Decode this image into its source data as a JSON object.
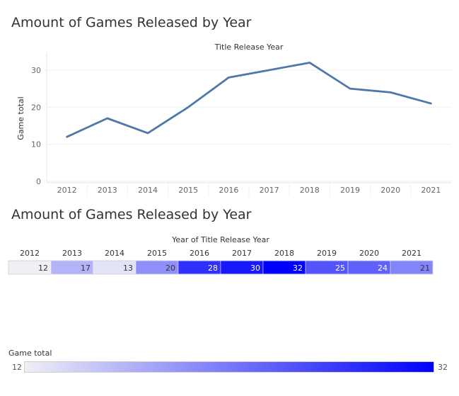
{
  "chart_data": [
    {
      "type": "line",
      "title": "Amount of Games Released by Year",
      "xlabel": "Title Release Year",
      "ylabel": "Game total",
      "categories": [
        "2012",
        "2013",
        "2014",
        "2015",
        "2016",
        "2017",
        "2018",
        "2019",
        "2020",
        "2021"
      ],
      "values": [
        12,
        17,
        13,
        20,
        28,
        30,
        32,
        25,
        24,
        21
      ],
      "yticks": [
        0,
        10,
        20,
        30
      ],
      "ylim": [
        0,
        34
      ],
      "grid": true,
      "line_color": "#4e79a7"
    },
    {
      "type": "heatmap",
      "title": "Amount of Games Released by Year",
      "xlabel": "Year of Title Release Year",
      "categories": [
        "2012",
        "2013",
        "2014",
        "2015",
        "2016",
        "2017",
        "2018",
        "2019",
        "2020",
        "2021"
      ],
      "values": [
        12,
        17,
        13,
        20,
        28,
        30,
        32,
        25,
        24,
        21
      ],
      "color_min": "#efeff6",
      "color_max": "#0000ff"
    }
  ],
  "legend": {
    "title": "Game total",
    "min": "12",
    "max": "32"
  }
}
